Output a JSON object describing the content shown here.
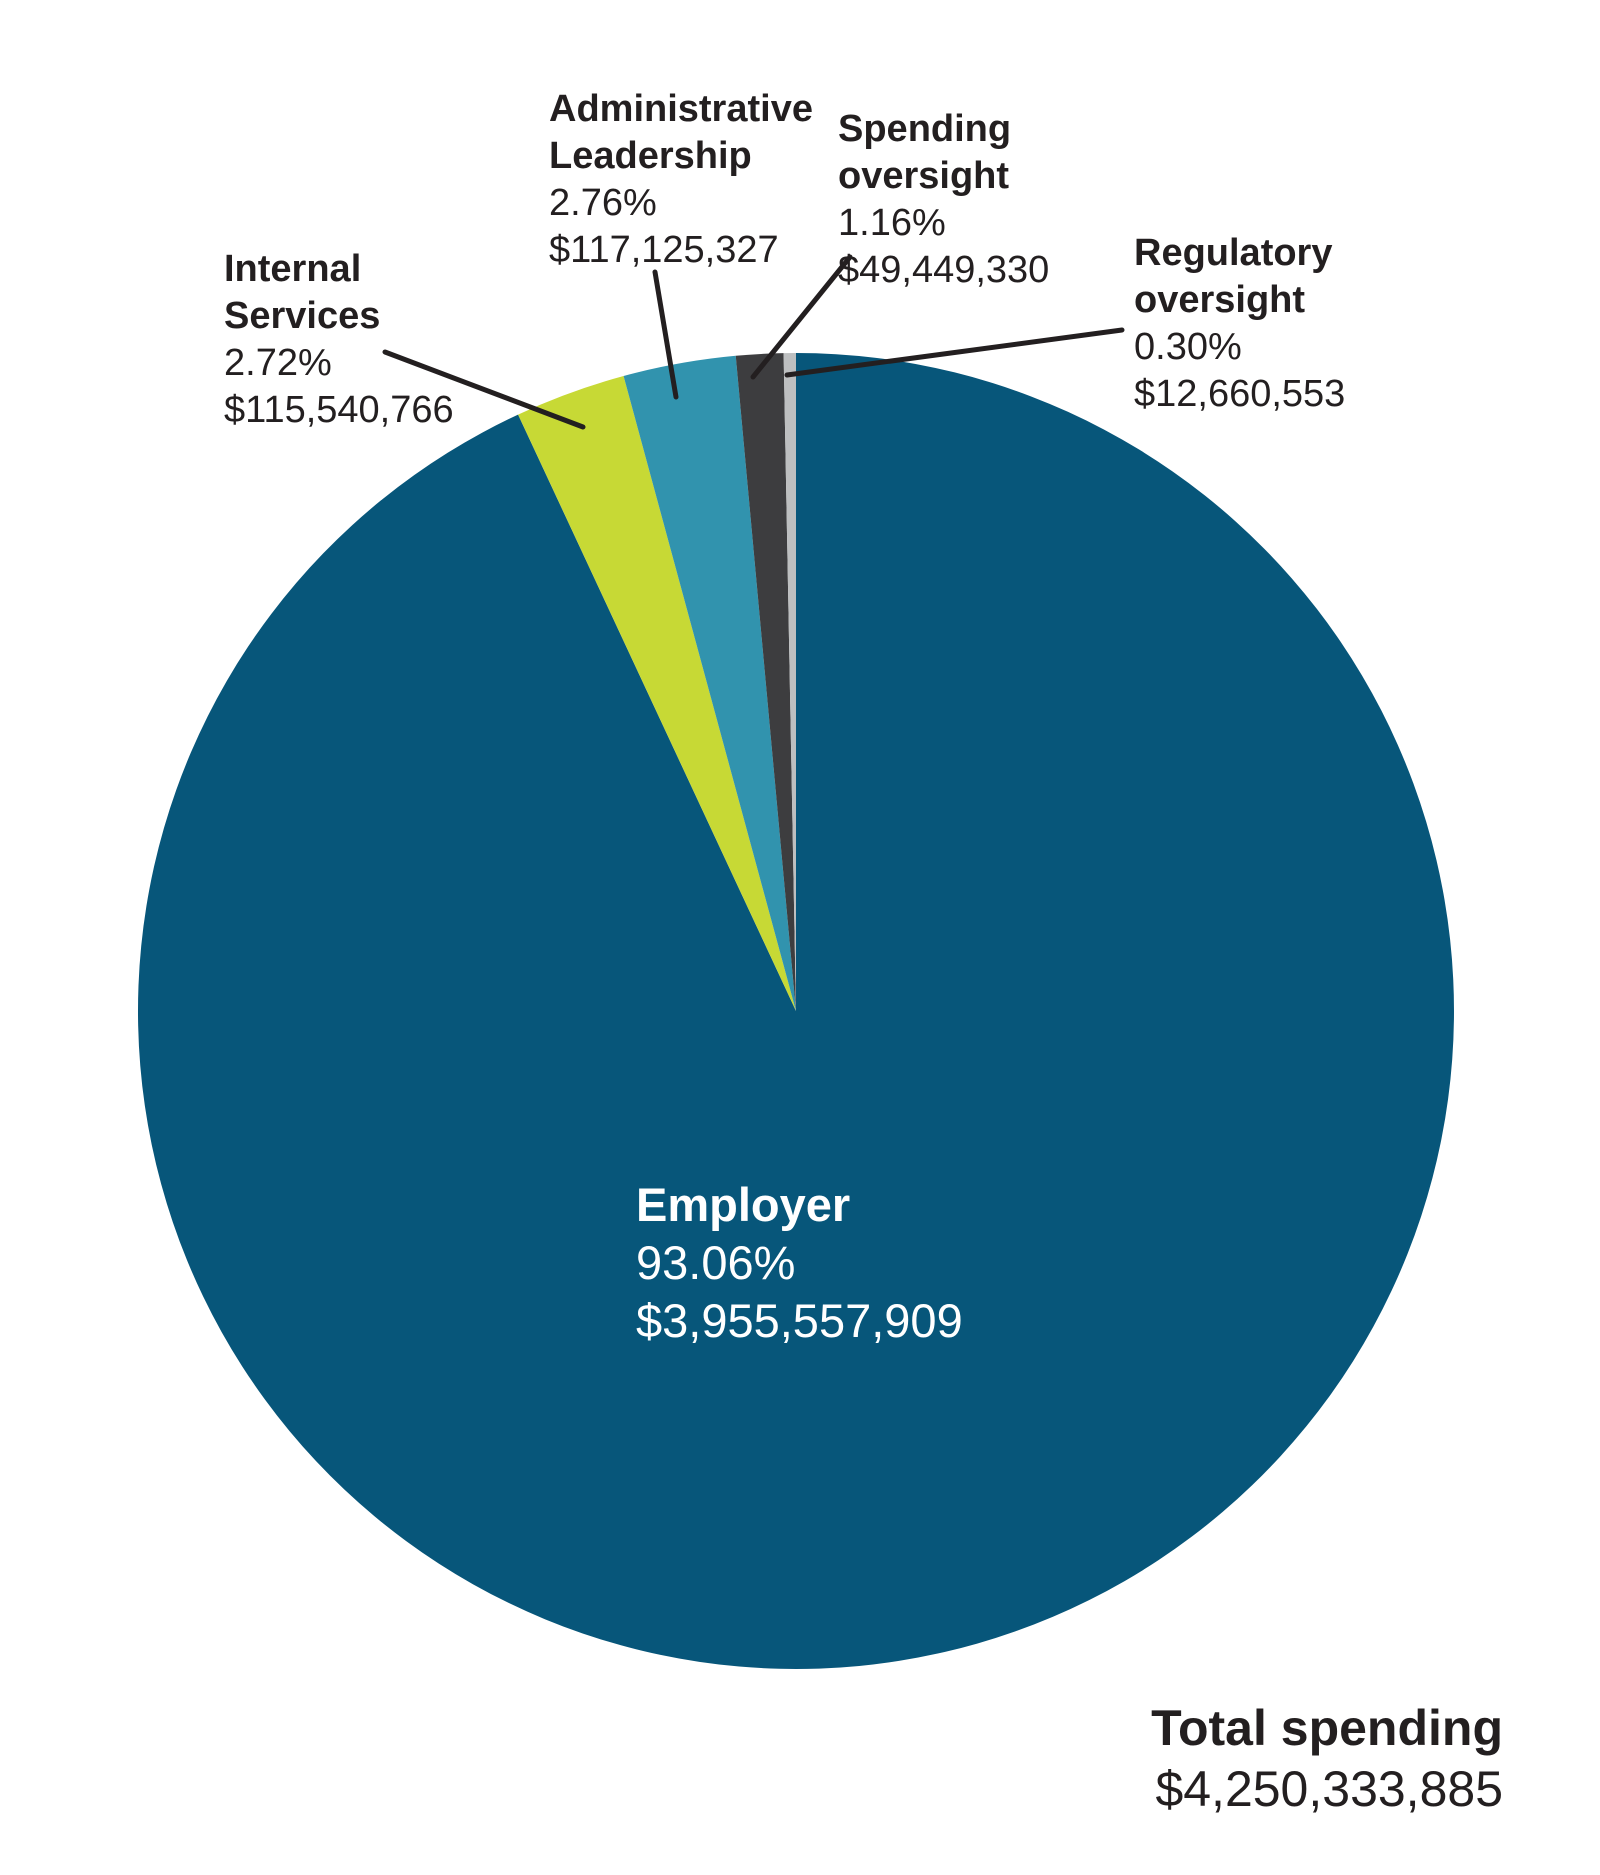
{
  "chart_data": {
    "type": "pie",
    "title": "",
    "direction": "clockwise",
    "start_angle": "12 o'clock",
    "legend_position": "callout labels with leader lines",
    "colors": {
      "background": "#ffffff",
      "text": "#231f20",
      "leader_line": "#231f20",
      "employer_label_text": "#ffffff"
    },
    "total": {
      "label": "Total spending",
      "amount": "$4,250,333,885",
      "value": 4250333885
    },
    "slices": [
      {
        "name": "Employer",
        "name_lines": [
          "Employer"
        ],
        "pct": 93.06,
        "pct_label": "93.06%",
        "amount": "$3,955,557,909",
        "value": 3955557909,
        "color": "#07567a"
      },
      {
        "name": "Internal Services",
        "name_lines": [
          "Internal",
          "Services"
        ],
        "pct": 2.72,
        "pct_label": "2.72%",
        "amount": "$115,540,766",
        "value": 115540766,
        "color": "#c7d935"
      },
      {
        "name": "Administrative Leadership",
        "name_lines": [
          "Administrative",
          "Leadership"
        ],
        "pct": 2.76,
        "pct_label": "2.76%",
        "amount": "$117,125,327",
        "value": 117125327,
        "color": "#3193ae"
      },
      {
        "name": "Spending oversight",
        "name_lines": [
          "Spending",
          "oversight"
        ],
        "pct": 1.16,
        "pct_label": "1.16%",
        "amount": "$49,449,330",
        "value": 49449330,
        "color": "#3d3d3f"
      },
      {
        "name": "Regulatory oversight",
        "name_lines": [
          "Regulatory",
          "oversight"
        ],
        "pct": 0.3,
        "pct_label": "0.30%",
        "amount": "$12,660,553",
        "value": 12660553,
        "color": "#bdbfc0"
      }
    ]
  }
}
